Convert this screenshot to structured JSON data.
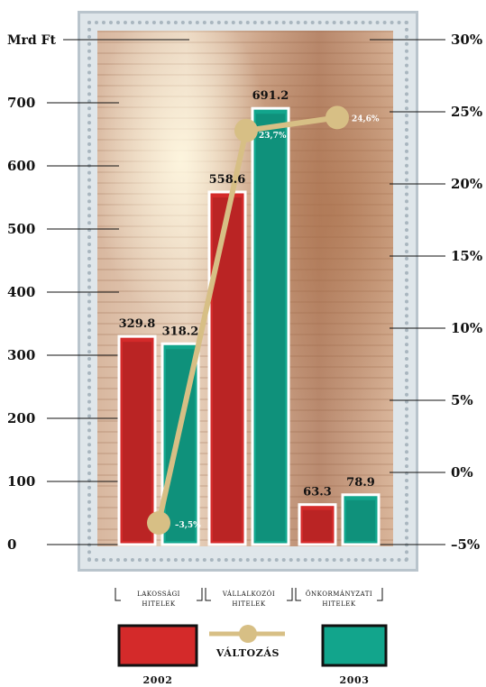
{
  "chart_data": {
    "type": "bar",
    "y_left_title": "Mrd Ft",
    "y_left_ticks": [
      "0",
      "100",
      "200",
      "300",
      "400",
      "500",
      "600",
      "700"
    ],
    "y_left_range": [
      0,
      800
    ],
    "y_right_ticks": [
      "–5%",
      "0%",
      "5%",
      "10%",
      "15%",
      "20%",
      "25%",
      "30%"
    ],
    "y_right_range": [
      -5,
      30
    ],
    "categories": [
      {
        "line1": "LAKOSSÁGI",
        "line2": "HITELEK"
      },
      {
        "line1": "VÁLLALKOZÓI",
        "line2": "HITELEK"
      },
      {
        "line1": "ÖNKORMÁNYZATI",
        "line2": "HITELEK"
      }
    ],
    "series": [
      {
        "name": "2002",
        "color": "#d42a2a",
        "values": [
          329.8,
          558.6,
          63.3
        ],
        "labels": [
          "329.8",
          "558.6",
          "63.3"
        ]
      },
      {
        "name": "2003",
        "color": "#12a58c",
        "values": [
          318.2,
          691.2,
          78.9
        ],
        "labels": [
          "318.2",
          "691.2",
          "78.9"
        ]
      }
    ],
    "change_series": {
      "name": "VÁLTOZÁS",
      "color": "#d7bf85",
      "values": [
        -3.5,
        23.7,
        24.6
      ],
      "labels": [
        "–3,5%",
        "23,7%",
        "24,6%"
      ]
    },
    "legend_position": "bottom"
  }
}
